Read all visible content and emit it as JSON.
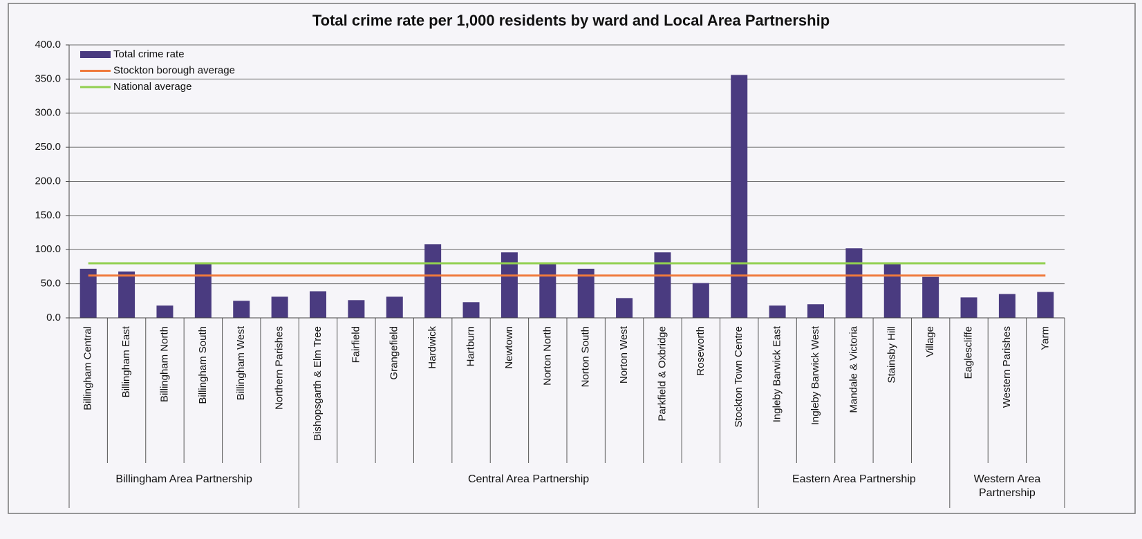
{
  "chart_data": {
    "type": "bar",
    "title": "Total crime rate per 1,000 residents by ward and Local Area Partnership",
    "groups": [
      {
        "name": "Billingham Area Partnership",
        "categories": [
          "Billingham Central",
          "Billingham East",
          "Billingham North",
          "Billingham South",
          "Billingham West",
          "Northern Parishes"
        ]
      },
      {
        "name": "Central Area Partnership",
        "categories": [
          "Bishopsgarth & Elm Tree",
          "Fairfield",
          "Grangefield",
          "Hardwick",
          "Hartburn",
          "Newtown",
          "Norton North",
          "Norton South",
          "Norton West",
          "Parkfield & Oxbridge",
          "Roseworth",
          "Stockton Town Centre"
        ]
      },
      {
        "name": "Eastern Area Partnership",
        "categories": [
          "Ingleby Barwick East",
          "Ingleby Barwick West",
          "Mandale & Victoria",
          "Stainsby Hill",
          "Village"
        ]
      },
      {
        "name": "Western Area Partnership",
        "categories": [
          "Eaglescliffe",
          "Western Parishes",
          "Yarm"
        ]
      }
    ],
    "series": [
      {
        "name": "Total crime rate",
        "color": "#4a3b80",
        "values": [
          72,
          68,
          18,
          80,
          25,
          31,
          39,
          26,
          31,
          108,
          23,
          96,
          81,
          72,
          29,
          96,
          51,
          356,
          18,
          20,
          102,
          81,
          60,
          30,
          35,
          38
        ]
      }
    ],
    "reference_lines": [
      {
        "name": "Stockton borough average",
        "color": "#f07a3c",
        "value": 62
      },
      {
        "name": "National average",
        "color": "#92d050",
        "value": 80
      }
    ],
    "ylim": [
      0,
      400
    ],
    "yticks": [
      {
        "value": 0,
        "label": "0.0"
      },
      {
        "value": 50,
        "label": "50.0"
      },
      {
        "value": 100,
        "label": "100.0"
      },
      {
        "value": 150,
        "label": "150.0"
      },
      {
        "value": 200,
        "label": "200.0"
      },
      {
        "value": 250,
        "label": "250.0"
      },
      {
        "value": 300,
        "label": "300.0"
      },
      {
        "value": 350,
        "label": "350.0"
      },
      {
        "value": 400,
        "label": "400.0"
      }
    ],
    "grid": true,
    "legend": "top-left"
  }
}
